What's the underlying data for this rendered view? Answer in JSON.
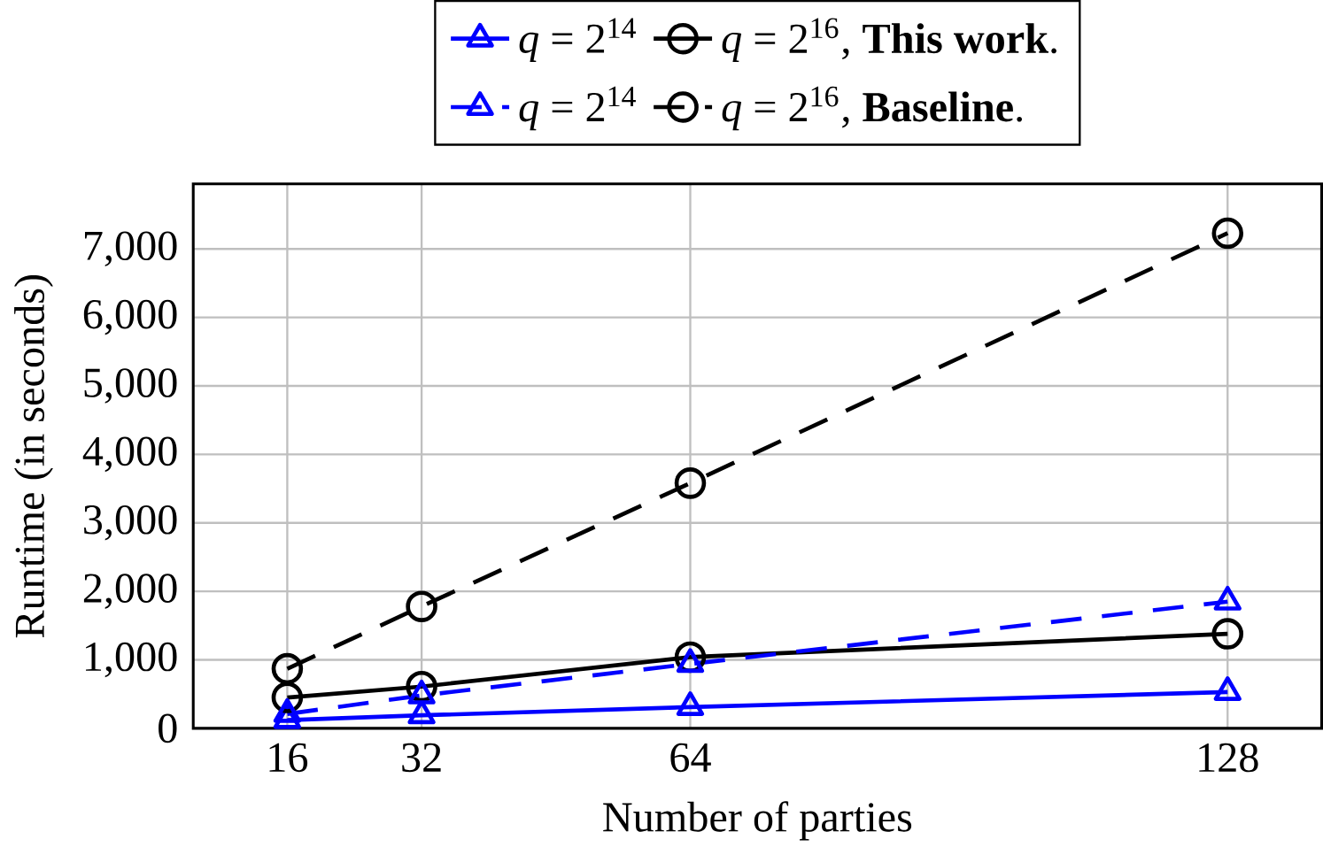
{
  "chart_data": {
    "type": "line",
    "x": [
      16,
      32,
      64,
      128
    ],
    "xlabel": "Number of parties",
    "ylabel": "Runtime (in seconds)",
    "xlim": [
      4.8,
      139.2
    ],
    "ylim": [
      0,
      7950
    ],
    "xticks": [
      16,
      32,
      64,
      128
    ],
    "yticks": [
      0,
      {
        "value": 1000,
        "label": "1,000"
      },
      {
        "value": 2000,
        "label": "2,000"
      },
      {
        "value": 3000,
        "label": "3,000"
      },
      {
        "value": 4000,
        "label": "4,000"
      },
      {
        "value": 5000,
        "label": "5,000"
      },
      {
        "value": 6000,
        "label": "6,000"
      },
      {
        "value": 7000,
        "label": "7,000"
      }
    ],
    "grid": true,
    "legend": "top",
    "series": [
      {
        "name": "*q* = 2$^{14}$",
        "color": "#0000ff",
        "marker": "triangle",
        "line_style": "solid",
        "values": [
          120,
          190,
          310,
          530
        ]
      },
      {
        "name": "*q* = 2$^{16}$, **This work**.",
        "color": "#000000",
        "marker": "circle",
        "line_style": "solid",
        "values": [
          450,
          610,
          1040,
          1380
        ]
      },
      {
        "name": "*q* = 2$^{14}$",
        "color": "#0000ff",
        "marker": "triangle",
        "line_style": "dashed",
        "values": [
          210,
          480,
          940,
          1850
        ]
      },
      {
        "name": "*q* = 2$^{16}$, **Baseline**.",
        "color": "#000000",
        "marker": "circle",
        "line_style": "dashed",
        "values": [
          870,
          1780,
          3580,
          7230
        ]
      }
    ]
  }
}
